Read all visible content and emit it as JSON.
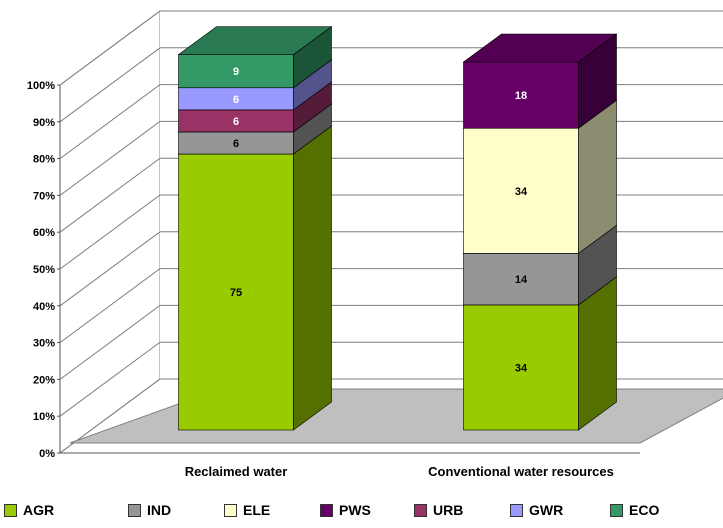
{
  "chart_data": {
    "type": "bar",
    "stacked": true,
    "three_d": true,
    "title": "",
    "xlabel": "",
    "ylabel": "",
    "ylim": [
      0,
      100
    ],
    "y_ticks": [
      "0%",
      "10%",
      "20%",
      "30%",
      "40%",
      "50%",
      "60%",
      "70%",
      "80%",
      "90%",
      "100%"
    ],
    "grid": true,
    "legend_position": "bottom",
    "categories": [
      "Reclaimed water",
      "Conventional water resources"
    ],
    "series": [
      {
        "name": "AGR",
        "color": "#99cc00",
        "values": [
          75,
          34
        ],
        "labels": [
          "75",
          "34"
        ]
      },
      {
        "name": "IND",
        "color": "#969696",
        "values": [
          6,
          14
        ],
        "labels": [
          "6",
          "14"
        ]
      },
      {
        "name": "ELE",
        "color": "#ffffcc",
        "values": [
          0,
          34
        ],
        "labels": [
          "",
          "34"
        ]
      },
      {
        "name": "PWS",
        "color": "#660066",
        "values": [
          0,
          18
        ],
        "labels": [
          "",
          "18"
        ]
      },
      {
        "name": "URB",
        "color": "#993366",
        "values": [
          6,
          0
        ],
        "labels": [
          "6",
          ""
        ]
      },
      {
        "name": "GWR",
        "color": "#9999ff",
        "values": [
          6,
          0
        ],
        "labels": [
          "6",
          ""
        ]
      },
      {
        "name": "ECO",
        "color": "#339966",
        "values": [
          9,
          0
        ],
        "labels": [
          "9",
          ""
        ]
      }
    ]
  }
}
